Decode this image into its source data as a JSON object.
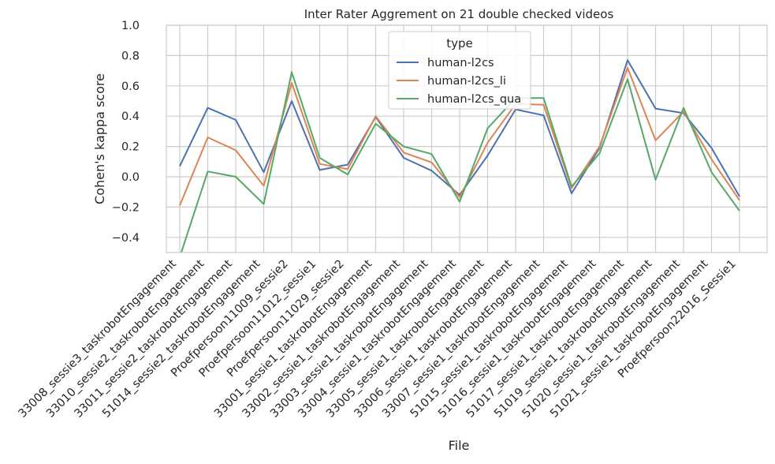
{
  "chart_data": {
    "type": "line",
    "title": "Inter Rater Aggrement on 21 double checked videos",
    "xlabel": "File",
    "ylabel": "Cohen's kappa score",
    "ylim": [
      -0.5,
      1.0
    ],
    "yticks": [
      -0.4,
      -0.2,
      0.0,
      0.2,
      0.4,
      0.6,
      0.8,
      1.0
    ],
    "ytick_labels": [
      "−0.4",
      "−0.2",
      "0.0",
      "0.2",
      "0.4",
      "0.6",
      "0.8",
      "1.0"
    ],
    "grid": true,
    "legend": {
      "title": "type",
      "placement": "top-center"
    },
    "categories": [
      "33008_sessie3_taskrobotEngagement",
      "33010_sessie2_taskrobotEngagement",
      "33011_sessie2_taskrobotEngagement",
      "51014_sessie2_taskrobotEngagement",
      "Proefpersoon11009_sessie2",
      "Proefpersoon11012_sessie1",
      "Proefpersoon11029_sessie2",
      "33001_sessie1_taskrobotEngagement",
      "33002_sessie1_taskrobotEngagement",
      "33003_sessie1_taskrobotEngagement",
      "33004_sessie1_taskrobotEngagement",
      "33005_sessie1_taskrobotEngagement",
      "33006_sessie1_taskrobotEngagement",
      "33007_sessie1_taskrobotEngagement",
      "51015_sessie1_taskrobotEngagement",
      "51016_sessie1_taskrobotEngagement",
      "51017_sessie1_taskrobotEngagement",
      "51019_sessie1_taskrobotEngagement",
      "51020_sessie1_taskrobotEngagement",
      "51021_sessie1_taskrobotEngagement",
      "Proefpersoon22016_Sessie1"
    ],
    "series": [
      {
        "name": "human-l2cs",
        "color": "#4c72b0",
        "values": [
          0.07,
          0.455,
          0.375,
          0.03,
          0.5,
          0.045,
          0.08,
          0.395,
          0.125,
          0.04,
          -0.12,
          0.14,
          0.445,
          0.405,
          -0.11,
          0.19,
          0.77,
          0.45,
          0.42,
          0.19,
          -0.13
        ]
      },
      {
        "name": "human-l2cs_li",
        "color": "#dd8452",
        "values": [
          -0.19,
          0.26,
          0.175,
          -0.06,
          0.62,
          0.085,
          0.05,
          0.4,
          0.16,
          0.095,
          -0.135,
          0.225,
          0.48,
          0.475,
          -0.075,
          0.2,
          0.72,
          0.24,
          0.43,
          0.115,
          -0.155
        ]
      },
      {
        "name": "human-l2cs_qua",
        "color": "#55a868",
        "values": [
          -0.53,
          0.035,
          0.0,
          -0.18,
          0.69,
          0.125,
          0.015,
          0.35,
          0.2,
          0.15,
          -0.165,
          0.32,
          0.52,
          0.52,
          -0.065,
          0.155,
          0.645,
          -0.02,
          0.455,
          0.03,
          -0.225
        ]
      }
    ]
  }
}
